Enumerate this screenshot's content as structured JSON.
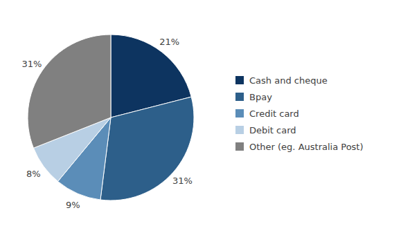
{
  "chart_data": {
    "type": "pie",
    "categories": [
      "Cash and cheque",
      "Bpay",
      "Credit card",
      "Debit card",
      "Other (eg. Australia Post)"
    ],
    "values": [
      21,
      31,
      9,
      8,
      31
    ],
    "value_labels": [
      "21%",
      "31%",
      "9%",
      "8%",
      "31%"
    ],
    "colors": [
      "#0d3460",
      "#2d5f8a",
      "#5b8db8",
      "#b8cfe4",
      "#808080"
    ],
    "data_labels": true,
    "legend": "right"
  }
}
